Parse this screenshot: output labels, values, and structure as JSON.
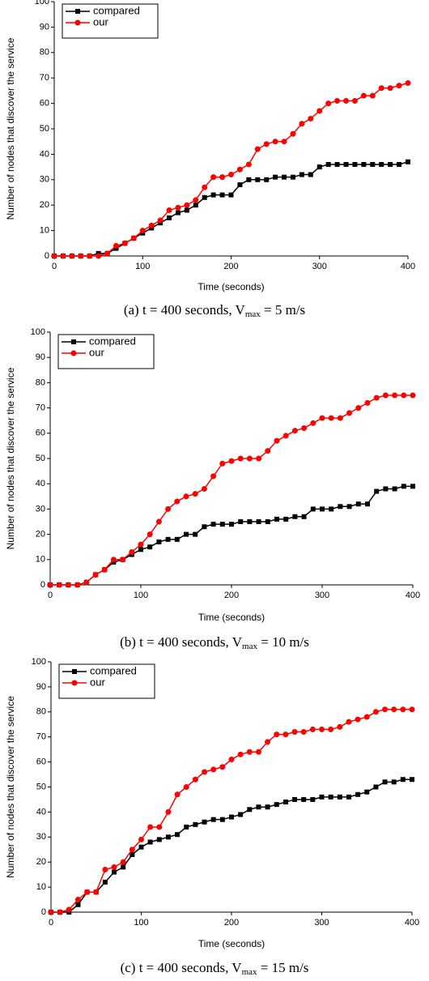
{
  "chart_data": [
    {
      "type": "line",
      "xlabel": "Time (seconds)",
      "ylabel": "Number of nodes that discover the service",
      "caption": [
        "(a) t = 400 seconds, V",
        "max",
        "  = 5 m/s"
      ],
      "x": [
        0,
        10,
        20,
        30,
        40,
        50,
        60,
        70,
        80,
        90,
        100,
        110,
        120,
        130,
        140,
        150,
        160,
        170,
        180,
        190,
        200,
        210,
        220,
        230,
        240,
        250,
        260,
        270,
        280,
        290,
        300,
        310,
        320,
        330,
        340,
        350,
        360,
        370,
        380,
        390,
        400
      ],
      "series": [
        {
          "name": "compared",
          "color": "#000000",
          "marker": "square",
          "values": [
            0,
            0,
            0,
            0,
            0,
            1,
            1,
            3,
            5,
            7,
            9,
            11,
            13,
            15,
            17,
            18,
            20,
            23,
            24,
            24,
            24,
            28,
            30,
            30,
            30,
            31,
            31,
            31,
            32,
            32,
            35,
            36,
            36,
            36,
            36,
            36,
            36,
            36,
            36,
            36,
            37
          ]
        },
        {
          "name": "our",
          "color": "#ff0000",
          "marker": "circle",
          "values": [
            0,
            0,
            0,
            0,
            0,
            0,
            1,
            4,
            5,
            7,
            10,
            12,
            14,
            18,
            19,
            20,
            22,
            27,
            31,
            31,
            32,
            34,
            36,
            42,
            44,
            45,
            45,
            48,
            52,
            54,
            57,
            60,
            61,
            61,
            61,
            63,
            63,
            66,
            66,
            67,
            68
          ]
        }
      ],
      "xlim": [
        0,
        400
      ],
      "ylim": [
        0,
        100
      ],
      "xticks": [
        0,
        100,
        200,
        300,
        400
      ],
      "yticks": [
        0,
        10,
        20,
        30,
        40,
        50,
        60,
        70,
        80,
        90,
        100
      ],
      "legend": "upper left"
    },
    {
      "type": "line",
      "xlabel": "Time (seconds)",
      "ylabel": "Number of nodes that discover the service",
      "caption": [
        "(b) t = 400 seconds, V",
        "max",
        "  = 10 m/s"
      ],
      "x": [
        0,
        10,
        20,
        30,
        40,
        50,
        60,
        70,
        80,
        90,
        100,
        110,
        120,
        130,
        140,
        150,
        160,
        170,
        180,
        190,
        200,
        210,
        220,
        230,
        240,
        250,
        260,
        270,
        280,
        290,
        300,
        310,
        320,
        330,
        340,
        350,
        360,
        370,
        380,
        390,
        400
      ],
      "series": [
        {
          "name": "compared",
          "color": "#000000",
          "marker": "square",
          "values": [
            0,
            0,
            0,
            0,
            1,
            4,
            6,
            9,
            10,
            12,
            14,
            15,
            17,
            18,
            18,
            20,
            20,
            23,
            24,
            24,
            24,
            25,
            25,
            25,
            25,
            26,
            26,
            27,
            27,
            30,
            30,
            30,
            31,
            31,
            32,
            32,
            37,
            38,
            38,
            39,
            39
          ]
        },
        {
          "name": "our",
          "color": "#ff0000",
          "marker": "circle",
          "values": [
            0,
            0,
            0,
            0,
            1,
            4,
            6,
            10,
            10,
            13,
            16,
            20,
            25,
            30,
            33,
            35,
            36,
            38,
            43,
            48,
            49,
            50,
            50,
            50,
            53,
            57,
            59,
            61,
            62,
            64,
            66,
            66,
            66,
            68,
            70,
            72,
            74,
            75,
            75,
            75,
            75
          ]
        }
      ],
      "xlim": [
        0,
        400
      ],
      "ylim": [
        0,
        100
      ],
      "xticks": [
        0,
        100,
        200,
        300,
        400
      ],
      "yticks": [
        0,
        10,
        20,
        30,
        40,
        50,
        60,
        70,
        80,
        90,
        100
      ],
      "legend": "upper left"
    },
    {
      "type": "line",
      "xlabel": "Time (seconds)",
      "ylabel": "Number of nodes that discover the service",
      "caption": [
        "(c) t = 400 seconds, V",
        "max",
        "  = 15 m/s"
      ],
      "x": [
        0,
        10,
        20,
        30,
        40,
        50,
        60,
        70,
        80,
        90,
        100,
        110,
        120,
        130,
        140,
        150,
        160,
        170,
        180,
        190,
        200,
        210,
        220,
        230,
        240,
        250,
        260,
        270,
        280,
        290,
        300,
        310,
        320,
        330,
        340,
        350,
        360,
        370,
        380,
        390,
        400
      ],
      "series": [
        {
          "name": "compared",
          "color": "#000000",
          "marker": "square",
          "values": [
            0,
            0,
            0,
            3,
            8,
            8,
            12,
            16,
            18,
            23,
            26,
            28,
            29,
            30,
            31,
            34,
            35,
            36,
            37,
            37,
            38,
            39,
            41,
            42,
            42,
            43,
            44,
            45,
            45,
            45,
            46,
            46,
            46,
            46,
            47,
            48,
            50,
            52,
            52,
            53,
            53
          ]
        },
        {
          "name": "our",
          "color": "#ff0000",
          "marker": "circle",
          "values": [
            0,
            0,
            1,
            5,
            8,
            8,
            17,
            18,
            20,
            25,
            29,
            34,
            34,
            40,
            47,
            50,
            53,
            56,
            57,
            58,
            61,
            63,
            64,
            64,
            68,
            71,
            71,
            72,
            72,
            73,
            73,
            73,
            74,
            76,
            77,
            78,
            80,
            81,
            81,
            81,
            81
          ]
        }
      ],
      "xlim": [
        0,
        400
      ],
      "ylim": [
        0,
        100
      ],
      "xticks": [
        0,
        100,
        200,
        300,
        400
      ],
      "yticks": [
        0,
        10,
        20,
        30,
        40,
        50,
        60,
        70,
        80,
        90,
        100
      ],
      "legend": "upper left"
    }
  ]
}
